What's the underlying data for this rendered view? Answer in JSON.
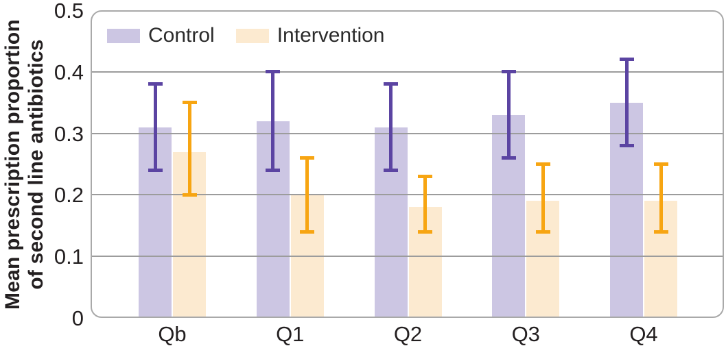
{
  "figure": {
    "y_axis_label_line1": "Mean prescription proportion",
    "y_axis_label_line2": "of second line antibiotics"
  },
  "chart_data": {
    "type": "bar",
    "title": "",
    "xlabel": "",
    "ylabel": "Mean prescription proportion of second line antibiotics",
    "categories": [
      "Qb",
      "Q1",
      "Q2",
      "Q3",
      "Q4"
    ],
    "series": [
      {
        "name": "Control",
        "values": [
          0.31,
          0.32,
          0.31,
          0.33,
          0.35
        ],
        "error_low": [
          0.24,
          0.24,
          0.24,
          0.26,
          0.28
        ],
        "error_high": [
          0.38,
          0.4,
          0.38,
          0.4,
          0.42
        ],
        "bar_color": "#ccc6e3",
        "error_color": "#5b44a2"
      },
      {
        "name": "Intervention",
        "values": [
          0.27,
          0.2,
          0.18,
          0.19,
          0.19
        ],
        "error_low": [
          0.2,
          0.14,
          0.14,
          0.14,
          0.14
        ],
        "error_high": [
          0.35,
          0.26,
          0.23,
          0.25,
          0.25
        ],
        "bar_color": "#fcead0",
        "error_color": "#f7a512"
      }
    ],
    "ylim": [
      0,
      0.5
    ],
    "ytick_values": [
      0,
      0.1,
      0.2,
      0.3,
      0.4,
      0.5
    ],
    "ytick_labels": [
      "0",
      "0.1",
      "0.2",
      "0.3",
      "0.4",
      "0.5"
    ],
    "grid": true,
    "legend_position": "top-left-inside",
    "colors": {
      "grid": "#9c9c9c",
      "frame": "#a9a9a9",
      "text": "#231f20"
    }
  }
}
